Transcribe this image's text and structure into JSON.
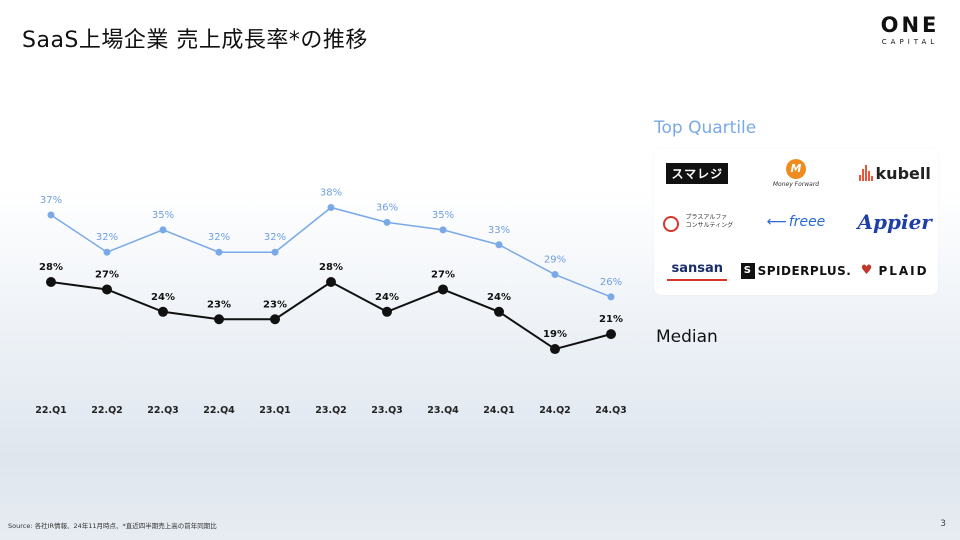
{
  "title": "SaaS上場企業 売上成長率*の推移",
  "logo": {
    "main": "ONE",
    "sub": "CAPITAL"
  },
  "legend": {
    "top_quartile": "Top Quartile",
    "median": "Median"
  },
  "companies": {
    "smaregi": "スマレジ",
    "moneyforward_mark": "M",
    "moneyforward": "Money Forward",
    "kubell": "kubell",
    "plusalpha_line1": "プラスアルファ",
    "plusalpha_line2": "コンサルティング",
    "freee": "freee",
    "appier": "Appier",
    "sansan": "sansan",
    "spiderplus": "SPIDERPLUS.",
    "spiderplus_mark": "S",
    "plaid": "PLAID"
  },
  "source": "Source: 各社IR情報、24年11月時点、*直近四半期売上高の前年同期比",
  "page_number": "3",
  "colors": {
    "top_quartile": "#7aa9e8",
    "median": "#111111"
  },
  "chart_data": {
    "type": "line",
    "categories": [
      "22.Q1",
      "22.Q2",
      "22.Q3",
      "22.Q4",
      "23.Q1",
      "23.Q2",
      "23.Q3",
      "23.Q4",
      "24.Q1",
      "24.Q2",
      "24.Q3"
    ],
    "series": [
      {
        "name": "Top Quartile",
        "values": [
          37,
          32,
          35,
          32,
          32,
          38,
          36,
          35,
          33,
          29,
          26
        ],
        "labels": [
          "37%",
          "32%",
          "35%",
          "32%",
          "32%",
          "38%",
          "36%",
          "35%",
          "33%",
          "29%",
          "26%"
        ]
      },
      {
        "name": "Median",
        "values": [
          28,
          27,
          24,
          23,
          23,
          28,
          24,
          27,
          24,
          19,
          21
        ],
        "labels": [
          "28%",
          "27%",
          "24%",
          "23%",
          "23%",
          "28%",
          "24%",
          "27%",
          "24%",
          "19%",
          "21%"
        ]
      }
    ]
  }
}
